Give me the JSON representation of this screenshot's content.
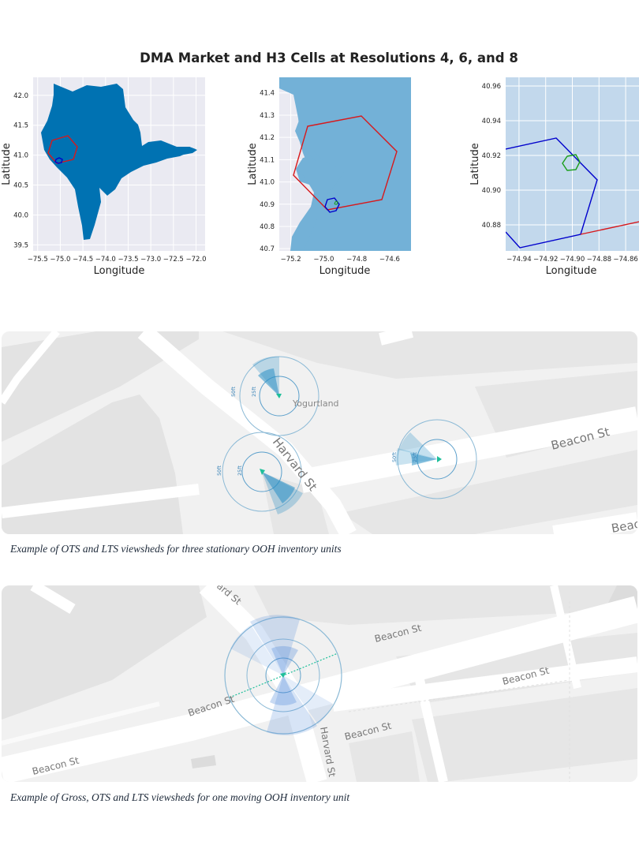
{
  "figure": {
    "title": "DMA Market and H3 Cells at Resolutions 4, 6, and 8"
  },
  "chart_data": [
    {
      "type": "map",
      "xlabel": "Longitude",
      "ylabel": "Latitude",
      "xlim": [
        -75.6,
        -71.8
      ],
      "ylim": [
        39.4,
        42.3
      ],
      "xticks": [
        -75.5,
        -75.0,
        -74.5,
        -74.0,
        -73.5,
        -73.0,
        -72.5,
        -72.0
      ],
      "yticks": [
        39.5,
        40.0,
        40.5,
        41.0,
        41.5,
        42.0
      ],
      "xtick_labels": [
        "−75.5",
        "−75.0",
        "−74.5",
        "−74.0",
        "−73.5",
        "−73.0",
        "−72.5",
        "−72.0"
      ],
      "ytick_labels": [
        "39.5",
        "40.0",
        "40.5",
        "41.0",
        "41.5",
        "42.0"
      ],
      "background": "#eaeaf2",
      "fill_color": "#0072b2",
      "grid": true
    },
    {
      "type": "map",
      "xlabel": "Longitude",
      "ylabel": "Latitude",
      "xlim": [
        -75.27,
        -74.47
      ],
      "ylim": [
        40.69,
        41.47
      ],
      "xticks": [
        -75.2,
        -75.0,
        -74.8,
        -74.6
      ],
      "yticks": [
        40.7,
        40.8,
        40.9,
        41.0,
        41.1,
        41.2,
        41.3,
        41.4
      ],
      "xtick_labels": [
        "−75.2",
        "−75.0",
        "−74.8",
        "−74.6"
      ],
      "ytick_labels": [
        "40.7",
        "40.8",
        "40.9",
        "41.0",
        "41.1",
        "41.2",
        "41.3",
        "41.4"
      ],
      "background": "#eaeaf2",
      "fill_color": "#73b1d7",
      "grid": true
    },
    {
      "type": "map",
      "xlabel": "Longitude",
      "ylabel": "Latitude",
      "xlim": [
        -74.95,
        -74.85
      ],
      "ylim": [
        40.865,
        40.965
      ],
      "xticks": [
        -74.94,
        -74.92,
        -74.9,
        -74.88,
        -74.86
      ],
      "yticks": [
        40.88,
        40.9,
        40.92,
        40.94,
        40.96
      ],
      "xtick_labels": [
        "−74.94",
        "−74.92",
        "−74.90",
        "−74.88",
        "−74.86"
      ],
      "ytick_labels": [
        "40.88",
        "40.90",
        "40.92",
        "40.94",
        "40.96"
      ],
      "background": "#c2d8ec",
      "fill_color": "#c2d8ec",
      "grid": true
    }
  ],
  "hex_colors": {
    "res4": "#d7191c",
    "res6": "#0000cc",
    "res8": "#1a9e1a"
  },
  "map1": {
    "streets": [
      "Harvard St",
      "Beacon St",
      "Beac"
    ],
    "poi": "Yogurtland",
    "ring_labels": [
      "50ft",
      "25ft"
    ],
    "caption": "Example of OTS and LTS viewsheds for three stationary OOH inventory units"
  },
  "map2": {
    "streets": [
      "ard St",
      "Beacon St",
      "Beacon St",
      "Beacon St",
      "Beacon St",
      "Harvard St",
      "Beacon St"
    ],
    "caption": "Example of Gross, OTS and LTS viewsheds for one moving OOH inventory unit"
  },
  "colors": {
    "marker": "#1fbf9a",
    "viewshed": "#2a8fc4",
    "ring": "#8cbad6",
    "road": "#ffffff",
    "block": "#e2e2e2"
  }
}
